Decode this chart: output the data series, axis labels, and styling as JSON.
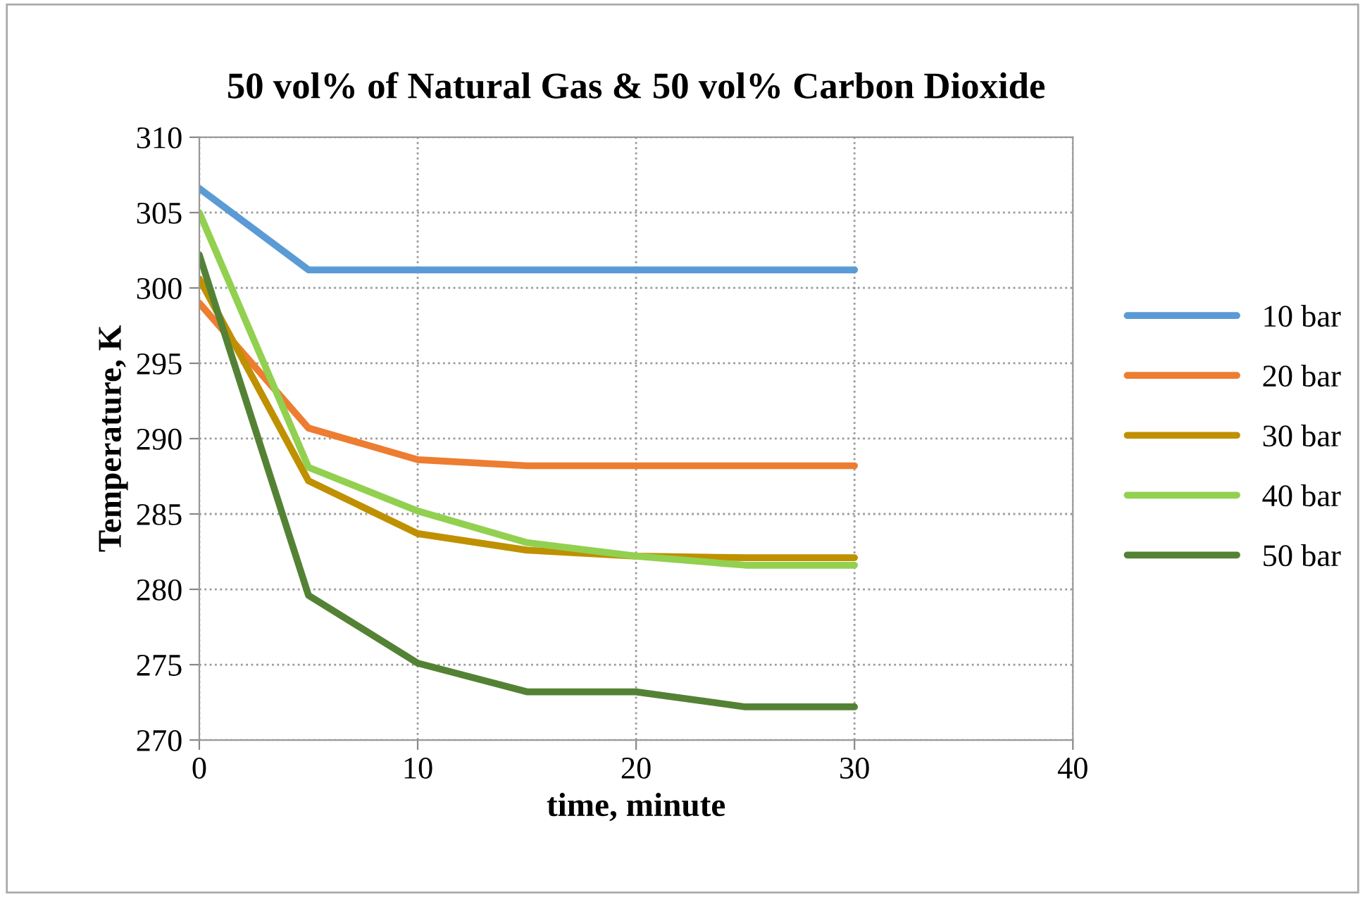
{
  "chart_data": {
    "type": "line",
    "title": "50 vol% of Natural Gas & 50 vol% Carbon Dioxide",
    "xlabel": "time, minute",
    "ylabel": "Temperature, K",
    "x": [
      0,
      5,
      10,
      15,
      20,
      25,
      30
    ],
    "series": [
      {
        "name": "10 bar",
        "color": "#5b9bd5",
        "values": [
          306.6,
          301.2,
          301.2,
          301.2,
          301.2,
          301.2,
          301.2
        ]
      },
      {
        "name": "20 bar",
        "color": "#ed7d31",
        "values": [
          299.0,
          290.7,
          288.6,
          288.2,
          288.2,
          288.2,
          288.2
        ]
      },
      {
        "name": "30 bar",
        "color": "#bf9000",
        "values": [
          300.6,
          287.2,
          283.7,
          282.6,
          282.2,
          282.1,
          282.1
        ]
      },
      {
        "name": "40 bar",
        "color": "#92d050",
        "values": [
          305.0,
          288.1,
          285.2,
          283.1,
          282.2,
          281.6,
          281.6
        ]
      },
      {
        "name": "50 bar",
        "color": "#548235",
        "values": [
          302.2,
          279.6,
          275.1,
          273.2,
          273.2,
          272.2,
          272.2
        ]
      }
    ],
    "xlim": [
      0,
      40
    ],
    "xticks": [
      0,
      10,
      20,
      30,
      40
    ],
    "ylim": [
      270,
      310
    ],
    "yticks": [
      270,
      275,
      280,
      285,
      290,
      295,
      300,
      305,
      310
    ],
    "grid": true,
    "legend": "right",
    "marker": "none",
    "line_style": "solid"
  }
}
